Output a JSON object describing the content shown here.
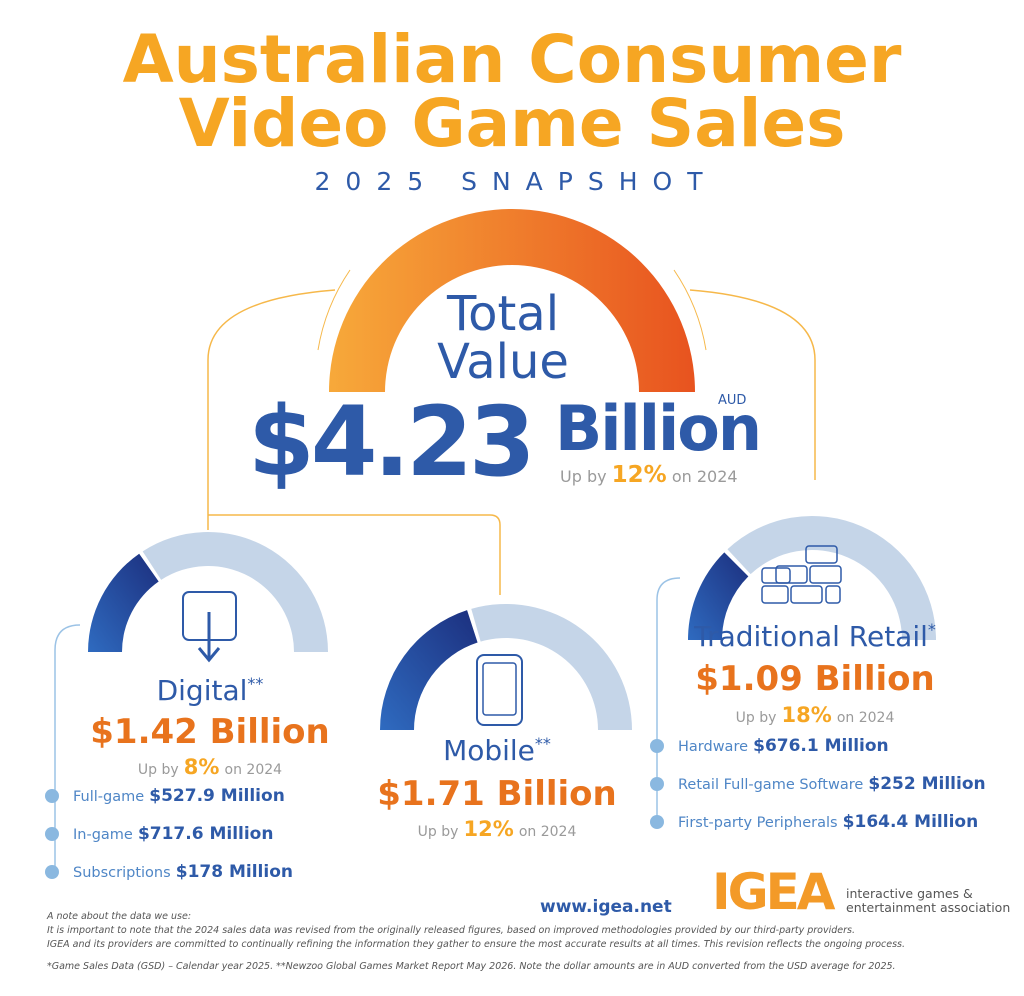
{
  "header": {
    "title_line1": "Australian Consumer",
    "title_line2": "Video Game Sales",
    "subtitle": "2025 SNAPSHOT"
  },
  "total": {
    "label_line1": "Total",
    "label_line2": "Value",
    "amount": "$4.23",
    "unit": "Billion",
    "currency": "AUD",
    "growth_prefix": "Up by",
    "growth": "12%",
    "growth_suffix": "on 2024"
  },
  "segments": [
    {
      "name": "Digital",
      "mark": "**",
      "amount": "$1.42 Billion",
      "growth_prefix": "Up by",
      "growth": "8%",
      "growth_suffix": "on 2024",
      "items": [
        {
          "label": "Full-game",
          "value": "$527.9 Million"
        },
        {
          "label": "In-game",
          "value": "$717.6 Million"
        },
        {
          "label": "Subscriptions",
          "value": "$178 Million"
        }
      ]
    },
    {
      "name": "Mobile",
      "mark": "**",
      "amount": "$1.71 Billion",
      "growth_prefix": "Up by",
      "growth": "12%",
      "growth_suffix": "on 2024",
      "items": []
    },
    {
      "name": "Traditional Retail",
      "mark": "*",
      "amount": "$1.09 Billion",
      "growth_prefix": "Up by",
      "growth": "18%",
      "growth_suffix": "on 2024",
      "items": [
        {
          "label": "Hardware",
          "value": "$676.1 Million"
        },
        {
          "label": "Retail Full-game Software",
          "value": "$252 Million"
        },
        {
          "label": "First-party Peripherals",
          "value": "$164.4 Million"
        }
      ]
    }
  ],
  "footer": {
    "website": "www.igea.net",
    "logo": "IGEA",
    "logo_tagline_line1": "interactive games &",
    "logo_tagline_line2": "entertainment association",
    "note_title": "A note about the data we use:",
    "note_lines": [
      "It is important to note that the 2024 sales data was revised from the originally released figures, based on improved methodologies provided by our third-party providers.",
      "IGEA and its providers are committed to continually refining the information they gather to ensure the most accurate results at all times. This revision reflects the ongoing process."
    ],
    "footnote": "*Game Sales Data (GSD) – Calendar year 2025. **Newzoo Global Games Market Report May 2026. Note the dollar amounts are in AUD converted from the USD average for 2025."
  }
}
